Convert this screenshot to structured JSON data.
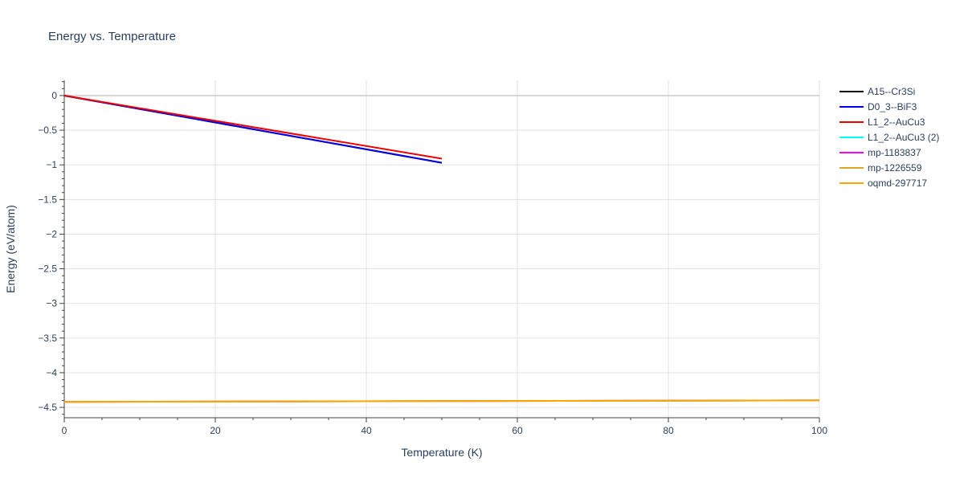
{
  "chart_data": {
    "type": "line",
    "title": "Energy vs. Temperature",
    "xlabel": "Temperature (K)",
    "ylabel": "Energy (eV/atom)",
    "xlim": [
      0,
      100
    ],
    "ylim": [
      -4.65,
      0.22
    ],
    "x_ticks": [
      0,
      20,
      40,
      60,
      80,
      100
    ],
    "y_ticks": [
      0,
      -0.5,
      -1,
      -1.5,
      -2,
      -2.5,
      -3,
      -3.5,
      -4,
      -4.5
    ],
    "x_tick_labels": [
      "0",
      "20",
      "40",
      "60",
      "80",
      "100"
    ],
    "y_tick_labels": [
      "0",
      "−0.5",
      "−1",
      "−1.5",
      "−2",
      "−2.5",
      "−3",
      "−3.5",
      "−4",
      "−4.5"
    ],
    "grid": true,
    "legend_position": "top-right",
    "series": [
      {
        "name": "A15--Cr3Si",
        "color": "#000000",
        "x": [
          0,
          50
        ],
        "y": [
          0,
          -0.97
        ]
      },
      {
        "name": "D0_3--BiF3",
        "color": "#0000ee",
        "x": [
          0,
          50
        ],
        "y": [
          0,
          -0.97
        ]
      },
      {
        "name": "L1_2--AuCu3",
        "color": "#ee0000",
        "x": [
          0,
          50
        ],
        "y": [
          0,
          -0.91
        ]
      },
      {
        "name": "L1_2--AuCu3 (2)",
        "color": "#00ffff",
        "x": [
          0,
          100
        ],
        "y": [
          -4.42,
          -4.4
        ]
      },
      {
        "name": "mp-1183837",
        "color": "#ff00ff",
        "x": [
          0,
          100
        ],
        "y": [
          -4.42,
          -4.4
        ]
      },
      {
        "name": "mp-1226559",
        "color": "#daa520",
        "x": [
          0,
          100
        ],
        "y": [
          -4.42,
          -4.4
        ]
      },
      {
        "name": "oqmd-297717",
        "color": "#ffa500",
        "x": [
          0,
          100
        ],
        "y": [
          -4.42,
          -4.4
        ]
      }
    ]
  }
}
